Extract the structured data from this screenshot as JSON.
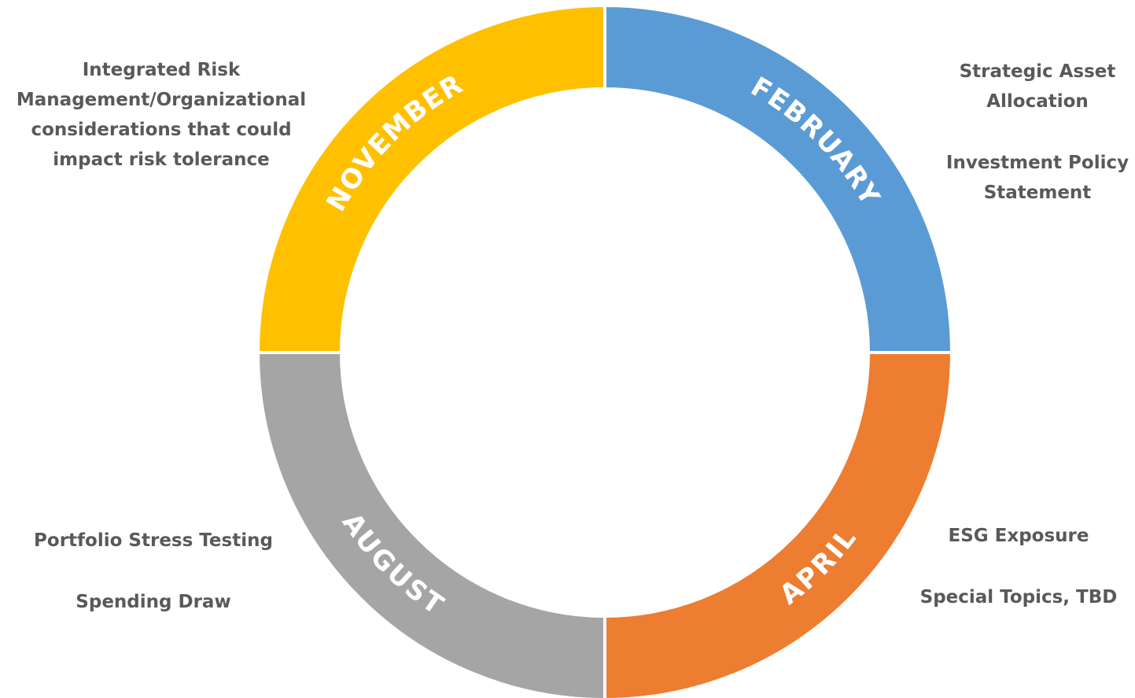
{
  "diagram": {
    "segments": [
      {
        "id": "february",
        "label": "FEBRUARY",
        "color": "#5B9BD5"
      },
      {
        "id": "april",
        "label": "APRIL",
        "color": "#ED7D31"
      },
      {
        "id": "august",
        "label": "AUGUST",
        "color": "#A5A5A5"
      },
      {
        "id": "november",
        "label": "NOVEMBER",
        "color": "#FFC000"
      }
    ]
  },
  "notes": {
    "november": {
      "lines": [
        "Integrated Risk",
        "Management/Organizational",
        "considerations that could",
        "impact risk tolerance"
      ]
    },
    "february": {
      "item1": [
        "Strategic Asset",
        "Allocation"
      ],
      "item2": [
        "Investment Policy",
        "Statement"
      ]
    },
    "august": {
      "item1": "Portfolio Stress Testing",
      "item2": "Spending Draw"
    },
    "april": {
      "item1": "ESG Exposure",
      "item2": "Special Topics, TBD"
    }
  }
}
